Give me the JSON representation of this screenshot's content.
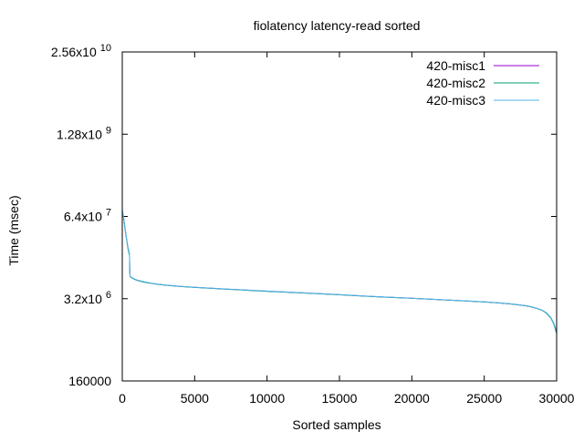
{
  "chart_data": {
    "type": "line",
    "title": "fiolatency latency-read sorted",
    "xlabel": "Sorted samples",
    "ylabel": "Time (msec)",
    "x_scale": "linear",
    "y_scale": "log",
    "xlim": [
      0,
      30000
    ],
    "ylim": [
      160000,
      25600000000
    ],
    "x_ticks": [
      {
        "value": 0,
        "label": "0"
      },
      {
        "value": 5000,
        "label": "5000"
      },
      {
        "value": 10000,
        "label": "10000"
      },
      {
        "value": 15000,
        "label": "15000"
      },
      {
        "value": 20000,
        "label": "20000"
      },
      {
        "value": 25000,
        "label": "25000"
      },
      {
        "value": 30000,
        "label": "30000"
      }
    ],
    "y_ticks": [
      {
        "value": 160000,
        "label": "160000",
        "sup": ""
      },
      {
        "value": 3200000,
        "label": "3.2x10",
        "sup": "6"
      },
      {
        "value": 64000000,
        "label": "6.4x10",
        "sup": "7"
      },
      {
        "value": 1280000000,
        "label": "1.28x10",
        "sup": "9"
      },
      {
        "value": 25600000000,
        "label": "2.56x10",
        "sup": "10"
      }
    ],
    "grid": false,
    "legend_position": "top-right",
    "series": [
      {
        "name": "420-misc1",
        "color": "#9400d3",
        "x": [
          0,
          100,
          200,
          300,
          400,
          500,
          520,
          540,
          600,
          800,
          1000,
          1500,
          2000,
          2500,
          3000,
          4000,
          5000,
          7500,
          10000,
          12500,
          15000,
          17500,
          20000,
          22500,
          25000,
          26000,
          27000,
          28000,
          28500,
          29000,
          29300,
          29600,
          29800,
          30000
        ],
        "y": [
          80000000,
          60000000,
          40000000,
          28000000,
          20000000,
          16000000,
          8500000,
          7200000,
          7000000,
          6600000,
          6300000,
          5900000,
          5600000,
          5400000,
          5250000,
          5000000,
          4850000,
          4500000,
          4200000,
          3950000,
          3700000,
          3450000,
          3250000,
          3050000,
          2850000,
          2750000,
          2620000,
          2450000,
          2300000,
          2100000,
          1900000,
          1600000,
          1300000,
          950000
        ]
      },
      {
        "name": "420-misc2",
        "color": "#009e73",
        "x": [
          0,
          100,
          200,
          300,
          400,
          500,
          520,
          540,
          600,
          800,
          1000,
          1500,
          2000,
          2500,
          3000,
          4000,
          5000,
          7500,
          10000,
          12500,
          15000,
          17500,
          20000,
          22500,
          25000,
          26000,
          27000,
          28000,
          28500,
          29000,
          29300,
          29600,
          29800,
          30000
        ],
        "y": [
          78000000,
          58000000,
          39000000,
          27500000,
          19500000,
          15500000,
          8400000,
          7150000,
          6950000,
          6550000,
          6250000,
          5850000,
          5580000,
          5380000,
          5230000,
          4980000,
          4830000,
          4480000,
          4180000,
          3930000,
          3690000,
          3440000,
          3240000,
          3040000,
          2840000,
          2740000,
          2610000,
          2440000,
          2290000,
          2090000,
          1880000,
          1580000,
          1280000,
          900000
        ]
      },
      {
        "name": "420-misc3",
        "color": "#56b4e9",
        "x": [
          0,
          100,
          200,
          300,
          400,
          500,
          520,
          540,
          600,
          800,
          1000,
          1500,
          2000,
          2500,
          3000,
          4000,
          5000,
          7500,
          10000,
          12500,
          15000,
          17500,
          20000,
          22500,
          25000,
          26000,
          27000,
          28000,
          28500,
          29000,
          29300,
          29600,
          29800,
          30000
        ],
        "y": [
          82000000,
          61000000,
          41000000,
          28500000,
          20500000,
          16500000,
          8600000,
          7250000,
          7050000,
          6650000,
          6350000,
          5950000,
          5620000,
          5420000,
          5270000,
          5020000,
          4870000,
          4520000,
          4220000,
          3970000,
          3710000,
          3460000,
          3260000,
          3060000,
          2860000,
          2760000,
          2630000,
          2460000,
          2310000,
          2110000,
          1920000,
          1620000,
          1320000,
          1000000
        ]
      }
    ]
  }
}
